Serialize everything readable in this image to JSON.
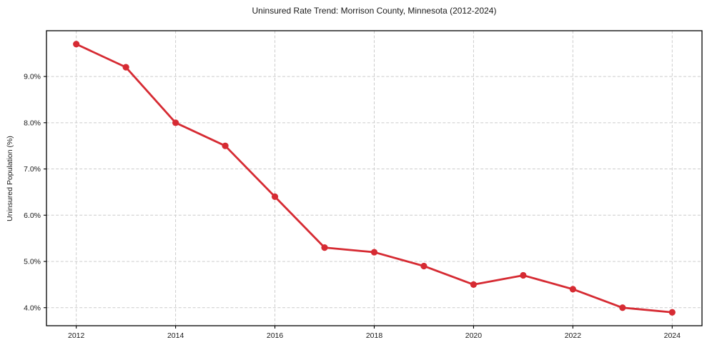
{
  "chart_data": {
    "type": "line",
    "title": "Uninsured Rate Trend: Morrison County, Minnesota (2012-2024)",
    "xlabel": "",
    "ylabel": "Uninsured Population (%)",
    "x": [
      2012,
      2013,
      2014,
      2015,
      2016,
      2017,
      2018,
      2019,
      2020,
      2021,
      2022,
      2023,
      2024
    ],
    "values": [
      9.7,
      9.2,
      8.0,
      7.5,
      6.4,
      5.3,
      5.2,
      4.9,
      4.5,
      4.7,
      4.4,
      4.0,
      3.9
    ],
    "series_name": "Uninsured rate",
    "xlim": [
      2011.4,
      2024.6
    ],
    "ylim": [
      3.61,
      9.99
    ],
    "x_ticks": [
      2012,
      2014,
      2016,
      2018,
      2020,
      2022,
      2024
    ],
    "x_tick_labels": [
      "2012",
      "2014",
      "2016",
      "2018",
      "2020",
      "2022",
      "2024"
    ],
    "y_ticks": [
      4.0,
      5.0,
      6.0,
      7.0,
      8.0,
      9.0
    ],
    "y_tick_labels": [
      "4.0%",
      "5.0%",
      "6.0%",
      "7.0%",
      "8.0%",
      "9.0%"
    ],
    "grid": true,
    "grid_style": "dashed",
    "legend": "none",
    "colors": {
      "line": "#d62b33",
      "marker": "#d62b33",
      "grid": "#cccccc",
      "spine": "#000000",
      "text": "#1a1a1a",
      "background": "#ffffff"
    }
  }
}
